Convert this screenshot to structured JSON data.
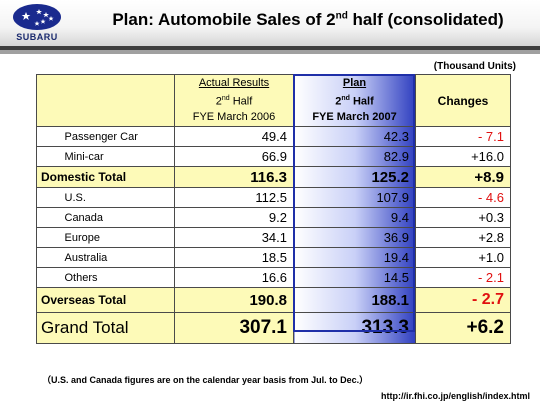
{
  "brand": "SUBARU",
  "title_main": "Plan: Automobile Sales of 2",
  "title_sup": "nd",
  "title_end": " half (consolidated)",
  "units": "(Thousand Units)",
  "header": {
    "actual_1": "Actual Results",
    "actual_2a": "2",
    "actual_2sup": "nd",
    "actual_2b": " Half",
    "actual_3": "FYE March 2006",
    "plan_1": "Plan",
    "plan_2a": "2",
    "plan_2sup": "nd",
    "plan_2b": " Half",
    "plan_3": "FYE March 2007",
    "changes": "Changes"
  },
  "rows": [
    {
      "label": "Passenger Car",
      "actual": "49.4",
      "plan": "42.3",
      "change": "- 7.1",
      "negative": true
    },
    {
      "label": "Mini-car",
      "actual": "66.9",
      "plan": "82.9",
      "change": "+16.0",
      "negative": false
    },
    {
      "label": "Domestic Total",
      "actual": "116.3",
      "plan": "125.2",
      "change": "+8.9",
      "negative": false
    },
    {
      "label": "U.S.",
      "actual": "112.5",
      "plan": "107.9",
      "change": "- 4.6",
      "negative": true
    },
    {
      "label": "Canada",
      "actual": "9.2",
      "plan": "9.4",
      "change": "+0.3",
      "negative": false
    },
    {
      "label": "Europe",
      "actual": "34.1",
      "plan": "36.9",
      "change": "+2.8",
      "negative": false
    },
    {
      "label": "Australia",
      "actual": "18.5",
      "plan": "19.4",
      "change": "+1.0",
      "negative": false
    },
    {
      "label": "Others",
      "actual": "16.6",
      "plan": "14.5",
      "change": "- 2.1",
      "negative": true
    },
    {
      "label": "Overseas Total",
      "actual": "190.8",
      "plan": "188.1",
      "change": "- 2.7",
      "negative": true
    },
    {
      "label": "Grand Total",
      "actual": "307.1",
      "plan": "313.3",
      "change": "+6.2",
      "negative": false
    }
  ],
  "footnote": "（U.S. and Canada figures are on the calendar year basis from Jul. to Dec.）",
  "url": "http://ir.fhi.co.jp/english/index.html",
  "colors": {
    "negative": "#e01010",
    "header_bg": "#fdfab8",
    "plan_blue": "#2f3fc0"
  }
}
